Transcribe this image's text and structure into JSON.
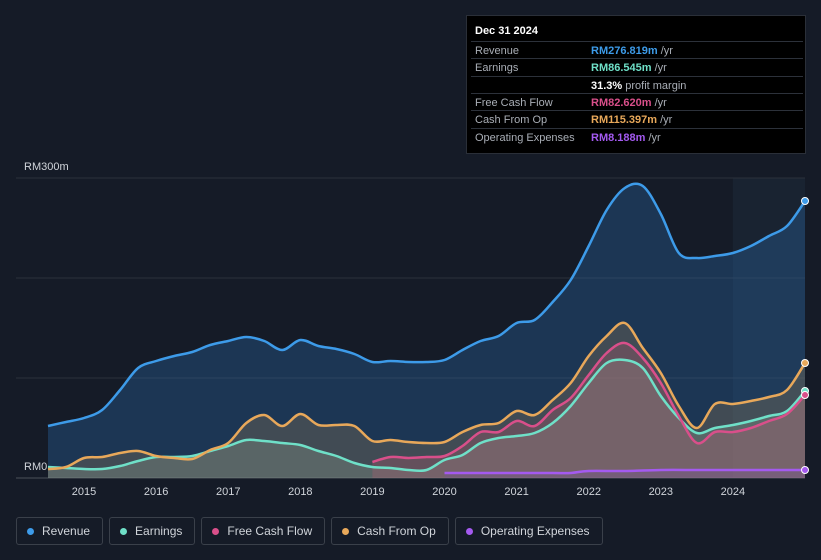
{
  "tooltip": {
    "date": "Dec 31 2024",
    "rows": [
      {
        "label": "Revenue",
        "value": "RM276.819m",
        "unit": "/yr",
        "color": "#3d9be9"
      },
      {
        "label": "Earnings",
        "value": "RM86.545m",
        "unit": "/yr",
        "color": "#6fe0c8"
      },
      {
        "label": "",
        "value": "31.3%",
        "unit": "profit margin",
        "color": "#ffffff"
      },
      {
        "label": "Free Cash Flow",
        "value": "RM82.620m",
        "unit": "/yr",
        "color": "#d94f8a"
      },
      {
        "label": "Cash From Op",
        "value": "RM115.397m",
        "unit": "/yr",
        "color": "#e8a85a"
      },
      {
        "label": "Operating Expenses",
        "value": "RM8.188m",
        "unit": "/yr",
        "color": "#a45af0"
      }
    ]
  },
  "legend": [
    {
      "label": "Revenue",
      "color": "#3d9be9"
    },
    {
      "label": "Earnings",
      "color": "#6fe0c8"
    },
    {
      "label": "Free Cash Flow",
      "color": "#d94f8a"
    },
    {
      "label": "Cash From Op",
      "color": "#e8a85a"
    },
    {
      "label": "Operating Expenses",
      "color": "#a45af0"
    }
  ],
  "chart_data": {
    "type": "area",
    "title": "",
    "ylabel_top": "RM300m",
    "ylabel_bottom": "RM0",
    "ylim": [
      0,
      300
    ],
    "xlim": [
      2014.5,
      2025.0
    ],
    "forecast_start": 2024.0,
    "x_ticks": [
      "2015",
      "2016",
      "2017",
      "2018",
      "2019",
      "2020",
      "2021",
      "2022",
      "2023",
      "2024"
    ],
    "series": [
      {
        "name": "Revenue",
        "color": "#3d9be9",
        "points": [
          [
            2014.5,
            52
          ],
          [
            2014.75,
            56
          ],
          [
            2015.0,
            60
          ],
          [
            2015.25,
            68
          ],
          [
            2015.5,
            88
          ],
          [
            2015.75,
            110
          ],
          [
            2016.0,
            117
          ],
          [
            2016.25,
            122
          ],
          [
            2016.5,
            126
          ],
          [
            2016.75,
            133
          ],
          [
            2017.0,
            137
          ],
          [
            2017.25,
            141
          ],
          [
            2017.5,
            137
          ],
          [
            2017.75,
            128
          ],
          [
            2018.0,
            138
          ],
          [
            2018.25,
            132
          ],
          [
            2018.5,
            129
          ],
          [
            2018.75,
            124
          ],
          [
            2019.0,
            116
          ],
          [
            2019.25,
            117
          ],
          [
            2019.5,
            116
          ],
          [
            2019.75,
            116
          ],
          [
            2020.0,
            118
          ],
          [
            2020.25,
            128
          ],
          [
            2020.5,
            137
          ],
          [
            2020.75,
            142
          ],
          [
            2021.0,
            155
          ],
          [
            2021.25,
            158
          ],
          [
            2021.5,
            176
          ],
          [
            2021.75,
            198
          ],
          [
            2022.0,
            232
          ],
          [
            2022.25,
            268
          ],
          [
            2022.5,
            290
          ],
          [
            2022.75,
            292
          ],
          [
            2023.0,
            264
          ],
          [
            2023.25,
            225
          ],
          [
            2023.5,
            220
          ],
          [
            2023.75,
            222
          ],
          [
            2024.0,
            225
          ],
          [
            2024.25,
            232
          ],
          [
            2024.5,
            242
          ],
          [
            2024.75,
            252
          ],
          [
            2025.0,
            277
          ]
        ]
      },
      {
        "name": "Earnings",
        "color": "#6fe0c8",
        "points": [
          [
            2014.5,
            11
          ],
          [
            2014.75,
            10
          ],
          [
            2015.0,
            9
          ],
          [
            2015.25,
            9
          ],
          [
            2015.5,
            12
          ],
          [
            2015.75,
            17
          ],
          [
            2016.0,
            21
          ],
          [
            2016.25,
            21
          ],
          [
            2016.5,
            22
          ],
          [
            2016.75,
            27
          ],
          [
            2017.0,
            32
          ],
          [
            2017.25,
            38
          ],
          [
            2017.5,
            37
          ],
          [
            2017.75,
            35
          ],
          [
            2018.0,
            33
          ],
          [
            2018.25,
            27
          ],
          [
            2018.5,
            22
          ],
          [
            2018.75,
            15
          ],
          [
            2019.0,
            11
          ],
          [
            2019.25,
            10
          ],
          [
            2019.5,
            8
          ],
          [
            2019.75,
            8
          ],
          [
            2020.0,
            18
          ],
          [
            2020.25,
            23
          ],
          [
            2020.5,
            35
          ],
          [
            2020.75,
            40
          ],
          [
            2021.0,
            42
          ],
          [
            2021.25,
            45
          ],
          [
            2021.5,
            55
          ],
          [
            2021.75,
            72
          ],
          [
            2022.0,
            95
          ],
          [
            2022.25,
            115
          ],
          [
            2022.5,
            118
          ],
          [
            2022.75,
            110
          ],
          [
            2023.0,
            82
          ],
          [
            2023.25,
            60
          ],
          [
            2023.5,
            45
          ],
          [
            2023.75,
            50
          ],
          [
            2024.0,
            53
          ],
          [
            2024.25,
            57
          ],
          [
            2024.5,
            62
          ],
          [
            2024.75,
            67
          ],
          [
            2025.0,
            87
          ]
        ]
      },
      {
        "name": "Free Cash Flow",
        "color": "#d94f8a",
        "points": [
          [
            2019.0,
            16
          ],
          [
            2019.25,
            21
          ],
          [
            2019.5,
            20
          ],
          [
            2019.75,
            21
          ],
          [
            2020.0,
            22
          ],
          [
            2020.25,
            32
          ],
          [
            2020.5,
            46
          ],
          [
            2020.75,
            46
          ],
          [
            2021.0,
            57
          ],
          [
            2021.25,
            52
          ],
          [
            2021.5,
            68
          ],
          [
            2021.75,
            80
          ],
          [
            2022.0,
            103
          ],
          [
            2022.25,
            125
          ],
          [
            2022.5,
            135
          ],
          [
            2022.75,
            120
          ],
          [
            2023.0,
            95
          ],
          [
            2023.25,
            62
          ],
          [
            2023.5,
            35
          ],
          [
            2023.75,
            46
          ],
          [
            2024.0,
            46
          ],
          [
            2024.25,
            50
          ],
          [
            2024.5,
            57
          ],
          [
            2024.75,
            64
          ],
          [
            2025.0,
            83
          ]
        ]
      },
      {
        "name": "Cash From Op",
        "color": "#e8a85a",
        "points": [
          [
            2014.5,
            9
          ],
          [
            2014.75,
            11
          ],
          [
            2015.0,
            20
          ],
          [
            2015.25,
            21
          ],
          [
            2015.5,
            25
          ],
          [
            2015.75,
            27
          ],
          [
            2016.0,
            22
          ],
          [
            2016.25,
            20
          ],
          [
            2016.5,
            19
          ],
          [
            2016.75,
            28
          ],
          [
            2017.0,
            35
          ],
          [
            2017.25,
            55
          ],
          [
            2017.5,
            63
          ],
          [
            2017.75,
            52
          ],
          [
            2018.0,
            64
          ],
          [
            2018.25,
            53
          ],
          [
            2018.5,
            53
          ],
          [
            2018.75,
            52
          ],
          [
            2019.0,
            37
          ],
          [
            2019.25,
            38
          ],
          [
            2019.5,
            36
          ],
          [
            2019.75,
            35
          ],
          [
            2020.0,
            36
          ],
          [
            2020.25,
            46
          ],
          [
            2020.5,
            53
          ],
          [
            2020.75,
            55
          ],
          [
            2021.0,
            67
          ],
          [
            2021.25,
            63
          ],
          [
            2021.5,
            78
          ],
          [
            2021.75,
            95
          ],
          [
            2022.0,
            122
          ],
          [
            2022.25,
            142
          ],
          [
            2022.5,
            155
          ],
          [
            2022.75,
            130
          ],
          [
            2023.0,
            105
          ],
          [
            2023.25,
            72
          ],
          [
            2023.5,
            50
          ],
          [
            2023.75,
            74
          ],
          [
            2024.0,
            74
          ],
          [
            2024.25,
            77
          ],
          [
            2024.5,
            81
          ],
          [
            2024.75,
            88
          ],
          [
            2025.0,
            115
          ]
        ]
      },
      {
        "name": "Operating Expenses",
        "color": "#a45af0",
        "points": [
          [
            2020.0,
            5
          ],
          [
            2020.5,
            5
          ],
          [
            2021.0,
            5
          ],
          [
            2021.5,
            5
          ],
          [
            2021.75,
            5
          ],
          [
            2022.0,
            7
          ],
          [
            2022.5,
            7
          ],
          [
            2023.0,
            8
          ],
          [
            2023.5,
            8
          ],
          [
            2024.0,
            8
          ],
          [
            2024.5,
            8
          ],
          [
            2025.0,
            8
          ]
        ]
      }
    ]
  }
}
